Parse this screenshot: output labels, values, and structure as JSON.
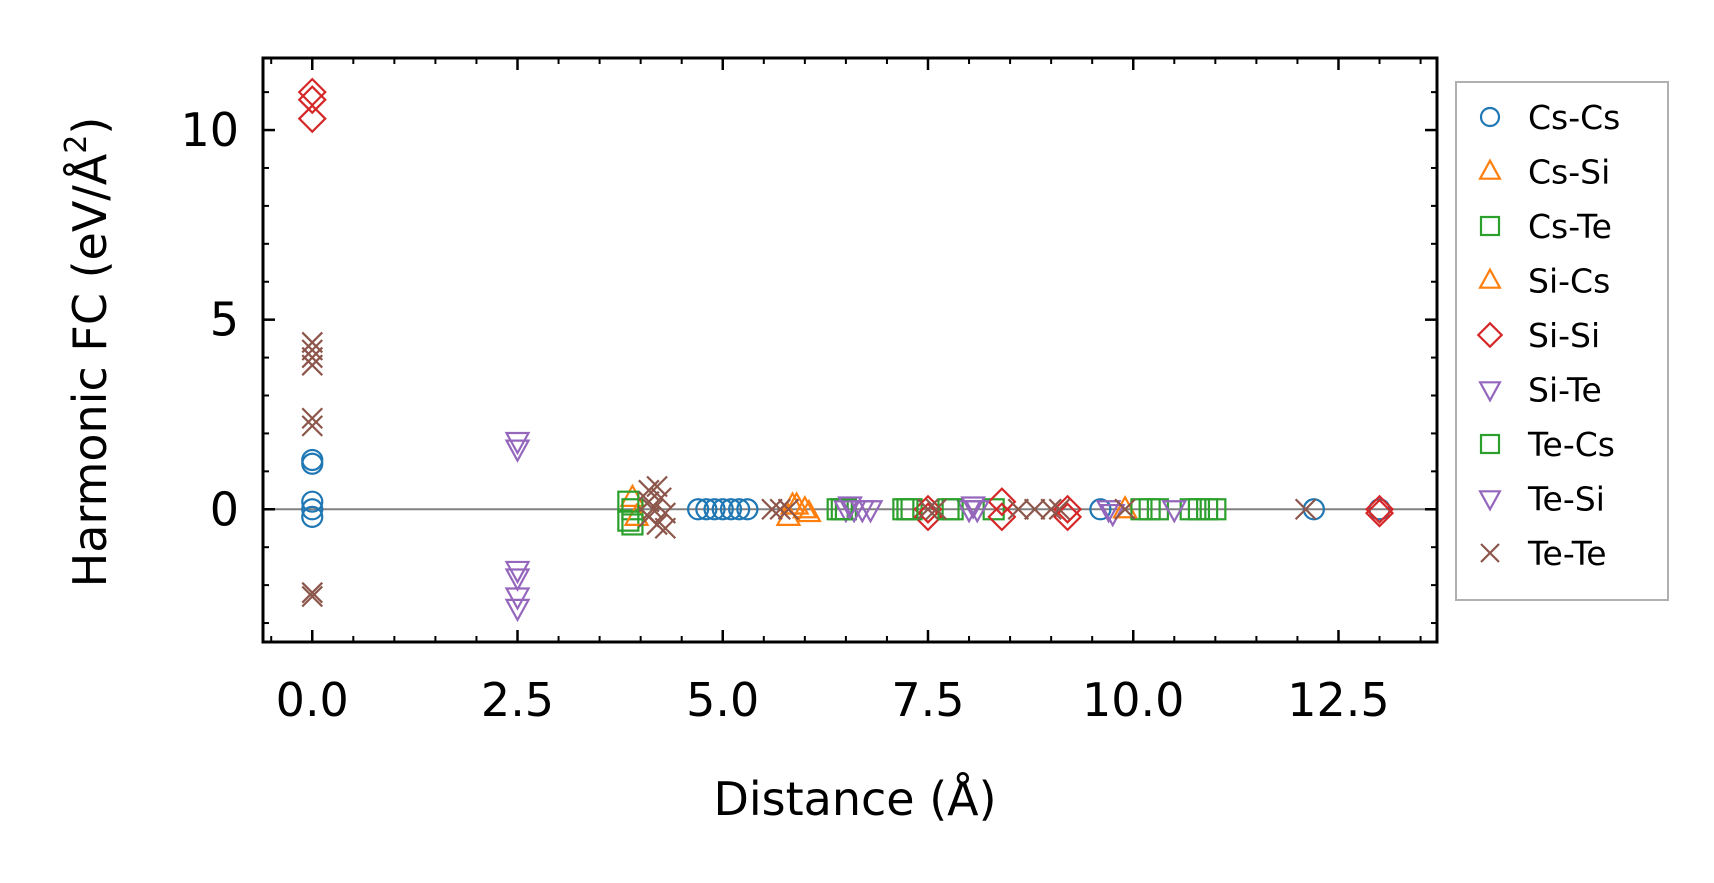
{
  "chart_data": {
    "type": "scatter",
    "xlabel": "Distance (Å)",
    "ylabel": "Harmonic FC (eV/Å",
    "ylabel_superscript": "2",
    "ylabel_close": ")",
    "xlim": [
      -0.6,
      13.7
    ],
    "ylim": [
      -3.5,
      11.9
    ],
    "xticks": [
      0.0,
      2.5,
      5.0,
      7.5,
      10.0,
      12.5
    ],
    "xtick_labels": [
      "0.0",
      "2.5",
      "5.0",
      "7.5",
      "10.0",
      "12.5"
    ],
    "yticks": [
      0,
      5,
      10
    ],
    "ytick_labels": [
      "0",
      "5",
      "10"
    ],
    "x_minor_step": 0.5,
    "y_minor_step": 1,
    "hline": 0,
    "legend_position": "right outside",
    "series": [
      {
        "name": "Cs-Cs",
        "marker": "circle",
        "color": "#1f77b4",
        "points": [
          [
            0,
            0.2
          ],
          [
            0,
            0
          ],
          [
            0,
            -0.2
          ],
          [
            0,
            1.2
          ],
          [
            0,
            1.3
          ],
          [
            4.7,
            0
          ],
          [
            4.8,
            0
          ],
          [
            4.9,
            0
          ],
          [
            5.0,
            0
          ],
          [
            5.1,
            0
          ],
          [
            5.2,
            0
          ],
          [
            5.3,
            0
          ],
          [
            9.6,
            0
          ],
          [
            12.2,
            0
          ],
          [
            13.0,
            0
          ]
        ]
      },
      {
        "name": "Cs-Si",
        "marker": "triangle-up",
        "color": "#ff7f0e",
        "points": [
          [
            3.9,
            0.3
          ],
          [
            5.8,
            -0.2
          ],
          [
            5.9,
            0.1
          ],
          [
            6.0,
            0
          ],
          [
            9.9,
            0
          ]
        ]
      },
      {
        "name": "Cs-Te",
        "marker": "square",
        "color": "#2ca02c",
        "points": [
          [
            3.85,
            -0.3
          ],
          [
            3.9,
            0
          ],
          [
            6.4,
            0
          ],
          [
            6.5,
            0
          ],
          [
            7.2,
            0
          ],
          [
            7.3,
            0
          ],
          [
            7.8,
            0
          ],
          [
            8.3,
            0
          ],
          [
            10.1,
            0
          ],
          [
            10.3,
            0
          ],
          [
            10.7,
            0
          ],
          [
            10.9,
            0
          ],
          [
            11.0,
            0
          ]
        ]
      },
      {
        "name": "Si-Cs",
        "marker": "triangle-up",
        "color": "#ff7f0e",
        "points": [
          [
            3.95,
            -0.2
          ],
          [
            5.85,
            0.1
          ],
          [
            6.05,
            -0.1
          ]
        ]
      },
      {
        "name": "Si-Si",
        "marker": "diamond",
        "color": "#d62728",
        "points": [
          [
            0,
            11.0
          ],
          [
            0,
            10.8
          ],
          [
            0,
            10.3
          ],
          [
            7.5,
            0
          ],
          [
            7.5,
            -0.2
          ],
          [
            8.4,
            0.2
          ],
          [
            8.4,
            -0.2
          ],
          [
            9.2,
            0
          ],
          [
            9.2,
            -0.2
          ],
          [
            13.0,
            0
          ],
          [
            13.0,
            -0.1
          ]
        ]
      },
      {
        "name": "Si-Te",
        "marker": "triangle-down",
        "color": "#9467bd",
        "points": [
          [
            2.5,
            1.8
          ],
          [
            2.5,
            1.6
          ],
          [
            2.5,
            -1.6
          ],
          [
            2.5,
            -1.8
          ],
          [
            2.5,
            -2.3
          ],
          [
            2.5,
            -2.6
          ],
          [
            6.5,
            0
          ],
          [
            6.6,
            0
          ],
          [
            6.8,
            0
          ],
          [
            8.0,
            0
          ],
          [
            8.1,
            0
          ],
          [
            9.7,
            0
          ],
          [
            10.5,
            0
          ]
        ]
      },
      {
        "name": "Te-Cs",
        "marker": "square",
        "color": "#2ca02c",
        "points": [
          [
            3.85,
            0.2
          ],
          [
            3.9,
            -0.4
          ],
          [
            6.45,
            0
          ],
          [
            7.25,
            0
          ],
          [
            7.75,
            0
          ],
          [
            10.2,
            0
          ],
          [
            10.8,
            0
          ]
        ]
      },
      {
        "name": "Te-Si",
        "marker": "triangle-down",
        "color": "#9467bd",
        "points": [
          [
            6.55,
            0.1
          ],
          [
            6.7,
            0
          ],
          [
            8.05,
            0.1
          ],
          [
            9.75,
            -0.1
          ]
        ]
      },
      {
        "name": "Te-Te",
        "marker": "x",
        "color": "#8c564b",
        "points": [
          [
            0,
            4.4
          ],
          [
            0,
            4.2
          ],
          [
            0,
            4.0
          ],
          [
            0,
            3.8
          ],
          [
            0,
            2.4
          ],
          [
            0,
            2.2
          ],
          [
            0,
            -2.2
          ],
          [
            0,
            -2.3
          ],
          [
            4.1,
            0.5
          ],
          [
            4.1,
            0.2
          ],
          [
            4.15,
            0
          ],
          [
            4.1,
            -0.2
          ],
          [
            4.2,
            -0.4
          ],
          [
            4.2,
            0.6
          ],
          [
            4.25,
            0.3
          ],
          [
            4.3,
            -0.1
          ],
          [
            4.3,
            -0.5
          ],
          [
            5.6,
            0
          ],
          [
            5.7,
            0
          ],
          [
            5.8,
            0
          ],
          [
            7.5,
            0
          ],
          [
            7.6,
            0
          ],
          [
            8.6,
            0
          ],
          [
            8.8,
            0
          ],
          [
            9.0,
            0
          ],
          [
            9.1,
            0
          ],
          [
            9.9,
            0
          ],
          [
            12.1,
            0
          ]
        ]
      }
    ]
  }
}
